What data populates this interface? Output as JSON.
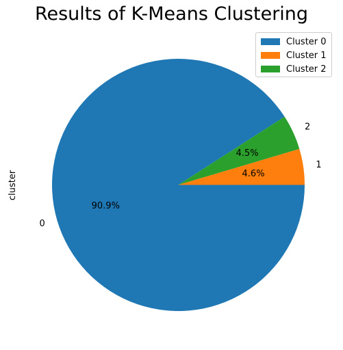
{
  "chart_data": {
    "type": "pie",
    "title": "Results of K-Means Clustering",
    "ylabel": "cluster",
    "legend_placement": "top-right",
    "slices": [
      {
        "label": "0",
        "legend": "Cluster 0",
        "value": 90.9,
        "pct_label": "90.9%",
        "color": "#1f77b4"
      },
      {
        "label": "2",
        "legend": "Cluster 2",
        "value": 4.5,
        "pct_label": "4.5%",
        "color": "#2ca02c"
      },
      {
        "label": "1",
        "legend": "Cluster 1",
        "value": 4.6,
        "pct_label": "4.6%",
        "color": "#ff7f0e"
      }
    ],
    "legend": [
      {
        "label": "Cluster 0",
        "color": "#1f77b4"
      },
      {
        "label": "Cluster 1",
        "color": "#ff7f0e"
      },
      {
        "label": "Cluster 2",
        "color": "#2ca02c"
      }
    ]
  }
}
